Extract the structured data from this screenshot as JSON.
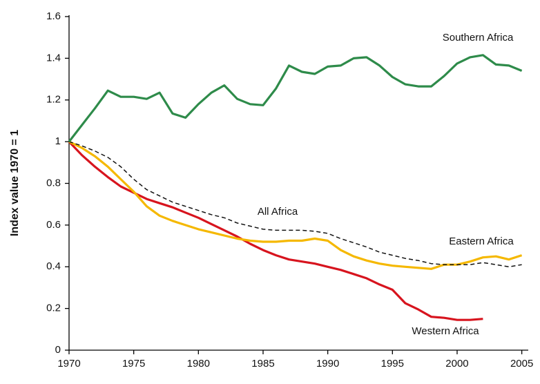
{
  "chart_data": {
    "type": "line",
    "ylabel": "Index value 1970 = 1",
    "x": [
      1970,
      1971,
      1972,
      1973,
      1974,
      1975,
      1976,
      1977,
      1978,
      1979,
      1980,
      1981,
      1982,
      1983,
      1984,
      1985,
      1986,
      1987,
      1988,
      1989,
      1990,
      1991,
      1992,
      1993,
      1994,
      1995,
      1996,
      1997,
      1998,
      1999,
      2000,
      2001,
      2002,
      2003,
      2004,
      2005
    ],
    "series": [
      {
        "name": "Southern Africa",
        "color": "#2e8b4a",
        "values": [
          1.0,
          1.08,
          1.16,
          1.245,
          1.215,
          1.215,
          1.205,
          1.235,
          1.135,
          1.115,
          1.18,
          1.235,
          1.27,
          1.205,
          1.18,
          1.175,
          1.255,
          1.365,
          1.335,
          1.325,
          1.36,
          1.365,
          1.4,
          1.405,
          1.365,
          1.31,
          1.275,
          1.265,
          1.265,
          1.315,
          1.375,
          1.405,
          1.415,
          1.37,
          1.365,
          1.34
        ]
      },
      {
        "name": "All Africa",
        "color": "#111111",
        "dashed": true,
        "values": [
          1.0,
          0.98,
          0.955,
          0.925,
          0.88,
          0.82,
          0.77,
          0.74,
          0.71,
          0.69,
          0.67,
          0.65,
          0.635,
          0.61,
          0.595,
          0.58,
          0.575,
          0.575,
          0.575,
          0.57,
          0.56,
          0.535,
          0.515,
          0.495,
          0.47,
          0.455,
          0.44,
          0.43,
          0.415,
          0.41,
          0.41,
          0.41,
          0.42,
          0.41,
          0.4,
          0.41
        ]
      },
      {
        "name": "Eastern Africa",
        "color": "#f5b800",
        "values": [
          1.0,
          0.97,
          0.93,
          0.88,
          0.82,
          0.76,
          0.69,
          0.645,
          0.62,
          0.6,
          0.58,
          0.565,
          0.55,
          0.535,
          0.525,
          0.52,
          0.52,
          0.525,
          0.525,
          0.535,
          0.525,
          0.48,
          0.45,
          0.43,
          0.415,
          0.405,
          0.4,
          0.395,
          0.39,
          0.41,
          0.41,
          0.425,
          0.445,
          0.45,
          0.435,
          0.455
        ]
      },
      {
        "name": "Western Africa",
        "color": "#d7141e",
        "values": [
          1.0,
          0.935,
          0.88,
          0.83,
          0.785,
          0.755,
          0.725,
          0.705,
          0.685,
          0.66,
          0.635,
          0.605,
          0.575,
          0.545,
          0.51,
          0.48,
          0.455,
          0.435,
          0.425,
          0.415,
          0.4,
          0.385,
          0.365,
          0.345,
          0.315,
          0.29,
          0.225,
          0.195,
          0.16,
          0.155,
          0.145,
          0.145,
          0.15,
          null,
          null,
          null
        ]
      }
    ],
    "xlim": [
      1970,
      2005.5
    ],
    "ylim": [
      0,
      1.6
    ],
    "xticks": [
      1970,
      1975,
      1980,
      1985,
      1990,
      1995,
      2000,
      2005
    ],
    "yticks": [
      0,
      0.2,
      0.4,
      0.6,
      0.8,
      1,
      1.2,
      1.4,
      1.6
    ],
    "grid": false
  }
}
